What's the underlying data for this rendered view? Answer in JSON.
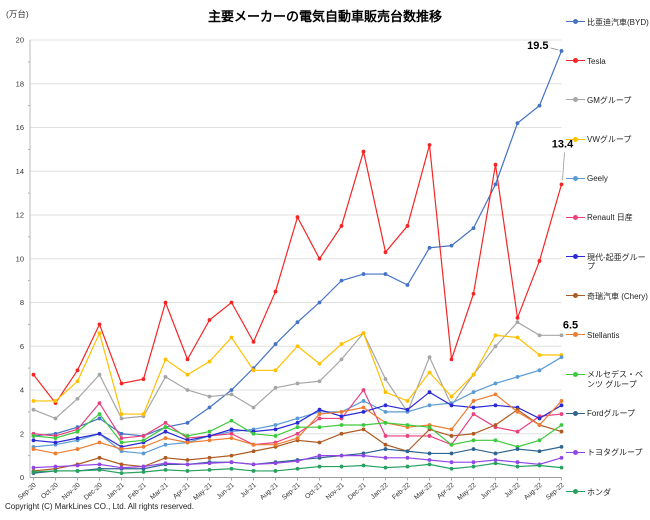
{
  "title": "主要メーカーの電気自動車販売台数推移",
  "y_axis_unit": "(万台)",
  "copyright": "Copyright (C) MarkLines CO., Ltd. All rights reserved.",
  "chart_data": {
    "type": "line",
    "title": "主要メーカーの電気自動車販売台数推移",
    "xlabel": "",
    "ylabel": "(万台)",
    "ylim": [
      0,
      20
    ],
    "ytick_interval": 2,
    "grid": true,
    "legend_position": "right",
    "x": [
      "Sep-20",
      "Oct-20",
      "Nov-20",
      "Dec-20",
      "Jan-21",
      "Feb-21",
      "Mar-21",
      "Apr-21",
      "May-21",
      "Jun-21",
      "Jul-21",
      "Aug-21",
      "Sep-21",
      "Oct-21",
      "Nov-21",
      "Dec-21",
      "Jan-22",
      "Feb-22",
      "Mar-22",
      "Apr-22",
      "May-22",
      "Jun-22",
      "Jul-22",
      "Aug-22",
      "Sep-22"
    ],
    "series": [
      {
        "name": "比亜迪汽車(BYD)",
        "color": "#4472C4",
        "values": [
          1.9,
          2.0,
          2.3,
          2.7,
          2.0,
          1.9,
          2.3,
          2.5,
          3.2,
          4.0,
          5.0,
          6.1,
          7.1,
          8.0,
          9.0,
          9.3,
          9.3,
          8.8,
          10.5,
          10.6,
          11.4,
          13.4,
          16.2,
          17.0,
          19.5
        ]
      },
      {
        "name": "Tesla",
        "color": "#F42525",
        "values": [
          4.7,
          3.4,
          4.9,
          7.0,
          4.3,
          4.5,
          8.0,
          5.4,
          7.2,
          8.0,
          6.2,
          8.5,
          11.9,
          10.0,
          11.5,
          14.9,
          10.3,
          11.5,
          15.2,
          5.4,
          8.4,
          14.3,
          7.3,
          9.9,
          13.4
        ]
      },
      {
        "name": "GMグループ",
        "color": "#A6A6A6",
        "values": [
          3.1,
          2.7,
          3.6,
          4.7,
          2.7,
          2.8,
          4.6,
          4.0,
          3.7,
          3.8,
          3.2,
          4.1,
          4.3,
          4.4,
          5.4,
          6.6,
          4.5,
          3.0,
          5.5,
          3.3,
          4.7,
          6.0,
          7.1,
          6.5,
          6.5
        ]
      },
      {
        "name": "VWグループ",
        "color": "#FFC000",
        "values": [
          3.5,
          3.5,
          4.4,
          6.6,
          2.9,
          2.9,
          5.4,
          4.7,
          5.3,
          6.4,
          4.9,
          4.9,
          6.0,
          5.2,
          6.1,
          6.6,
          3.9,
          3.5,
          4.8,
          3.7,
          4.7,
          6.5,
          6.4,
          5.6,
          5.6
        ]
      },
      {
        "name": "Geely",
        "color": "#5B9BD5",
        "values": [
          1.4,
          1.5,
          1.7,
          2.0,
          1.2,
          1.1,
          1.5,
          1.6,
          1.9,
          2.1,
          2.2,
          2.4,
          2.7,
          3.0,
          3.0,
          3.5,
          3.0,
          3.0,
          3.3,
          3.4,
          3.9,
          4.3,
          4.6,
          4.9,
          5.5
        ]
      },
      {
        "name": "Renault 日産",
        "color": "#E8417E",
        "values": [
          2.0,
          1.9,
          2.2,
          3.4,
          1.8,
          1.9,
          2.5,
          1.8,
          1.9,
          2.0,
          1.5,
          1.6,
          2.0,
          2.7,
          2.7,
          4.0,
          1.9,
          1.9,
          1.9,
          1.5,
          2.9,
          2.3,
          2.1,
          2.8,
          2.9
        ]
      },
      {
        "name": "現代-起亜グループ",
        "color": "#2929D6",
        "values": [
          1.7,
          1.6,
          1.8,
          2.0,
          1.4,
          1.6,
          2.1,
          1.7,
          1.9,
          2.2,
          2.1,
          2.2,
          2.5,
          3.1,
          2.8,
          3.0,
          3.3,
          3.1,
          3.9,
          3.3,
          3.2,
          3.3,
          3.2,
          2.7,
          3.3
        ]
      },
      {
        "name": "奇瑞汽車 (Chery)",
        "color": "#AE5A21",
        "values": [
          0.3,
          0.4,
          0.6,
          0.9,
          0.6,
          0.5,
          0.9,
          0.8,
          0.9,
          1.0,
          1.2,
          1.4,
          1.7,
          1.6,
          2.0,
          2.2,
          1.5,
          1.2,
          2.2,
          1.9,
          2.0,
          2.4,
          3.1,
          2.4,
          2.1
        ]
      },
      {
        "name": "Stellantis",
        "color": "#ED7D31",
        "values": [
          1.3,
          1.1,
          1.3,
          1.6,
          1.3,
          1.4,
          1.8,
          1.6,
          1.7,
          1.8,
          1.5,
          1.5,
          1.8,
          2.9,
          3.0,
          3.2,
          2.5,
          2.3,
          2.4,
          2.2,
          3.5,
          3.8,
          3.0,
          2.4,
          3.5
        ]
      },
      {
        "name": "メルセデス・ベンツ グループ",
        "color": "#3DC93D",
        "values": [
          1.9,
          1.8,
          2.1,
          2.9,
          1.6,
          1.7,
          2.3,
          1.9,
          2.1,
          2.6,
          2.0,
          1.9,
          2.3,
          2.3,
          2.4,
          2.4,
          2.5,
          2.4,
          2.3,
          1.5,
          1.7,
          1.7,
          1.4,
          1.7,
          2.4
        ]
      },
      {
        "name": "Fordグループ",
        "color": "#2E6490",
        "values": [
          0.2,
          0.3,
          0.3,
          0.4,
          0.4,
          0.4,
          0.6,
          0.6,
          0.7,
          0.7,
          0.6,
          0.7,
          0.8,
          0.9,
          1.0,
          1.1,
          1.3,
          1.2,
          1.1,
          1.1,
          1.3,
          1.1,
          1.3,
          1.2,
          1.4
        ]
      },
      {
        "name": "トヨタグループ",
        "color": "#9146E8",
        "values": [
          0.45,
          0.5,
          0.55,
          0.6,
          0.45,
          0.5,
          0.65,
          0.6,
          0.65,
          0.7,
          0.6,
          0.65,
          0.75,
          1.0,
          1.0,
          1.0,
          0.9,
          0.9,
          0.8,
          0.7,
          0.7,
          0.8,
          0.7,
          0.6,
          0.9
        ]
      },
      {
        "name": "ホンダ",
        "color": "#27A060",
        "values": [
          0.25,
          0.3,
          0.3,
          0.35,
          0.2,
          0.25,
          0.35,
          0.3,
          0.35,
          0.4,
          0.3,
          0.3,
          0.4,
          0.5,
          0.5,
          0.55,
          0.45,
          0.5,
          0.6,
          0.4,
          0.5,
          0.65,
          0.5,
          0.55,
          0.45
        ]
      }
    ],
    "annotations": [
      {
        "label": "19.5",
        "series": "比亜迪汽車(BYD)",
        "month": "Sep-22"
      },
      {
        "label": "13.4",
        "series": "Tesla",
        "month": "Sep-22"
      },
      {
        "label": "6.5",
        "series": "GMグループ",
        "month": "Sep-22"
      }
    ]
  }
}
